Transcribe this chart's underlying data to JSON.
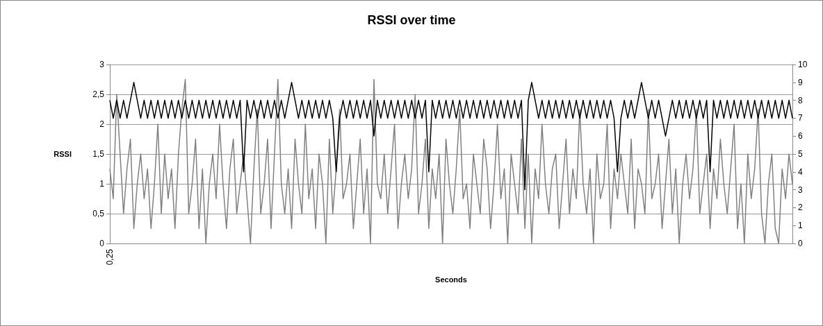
{
  "chart_data": {
    "type": "line",
    "title": "RSSI over time",
    "xlabel": "Seconds",
    "ylabel": "RSSI",
    "categories": [
      "0,25",
      null,
      null,
      null,
      null,
      null,
      null,
      null,
      null,
      null,
      null,
      null,
      null,
      null,
      null,
      null,
      null,
      null,
      null,
      null,
      null,
      null,
      null,
      null,
      null,
      null,
      null,
      null,
      null,
      null,
      null,
      null,
      null,
      null,
      null,
      null,
      null,
      null,
      null,
      null,
      null,
      null,
      null,
      null,
      null,
      null,
      null,
      null,
      null,
      null,
      null,
      null,
      null,
      null,
      null,
      null,
      null,
      null,
      null,
      null,
      null,
      null,
      null,
      null,
      null,
      null,
      null,
      null,
      null,
      null,
      null,
      null,
      null,
      null,
      null,
      null,
      null,
      null,
      null,
      null,
      null,
      null,
      null,
      null,
      null,
      null,
      null,
      null,
      null,
      null,
      null,
      null,
      null,
      null,
      null,
      null,
      null,
      null,
      null,
      null,
      null,
      null,
      null,
      null,
      null,
      null,
      null,
      null,
      null,
      null,
      null,
      null,
      null,
      null,
      null,
      null,
      null,
      null,
      null,
      null,
      null,
      null,
      null,
      null,
      null,
      null,
      null,
      null,
      null,
      null,
      null,
      null,
      null,
      null,
      null,
      null,
      null,
      null,
      null,
      null,
      null,
      null,
      null,
      null,
      null,
      null,
      null,
      null,
      null,
      null,
      null,
      null,
      null,
      null,
      null,
      null,
      null,
      null,
      null,
      null,
      null,
      null,
      null,
      null,
      null,
      null,
      null,
      null,
      null,
      null,
      null,
      null,
      null,
      null,
      null,
      null,
      null,
      null,
      null,
      null,
      null,
      null,
      null,
      null,
      null,
      null,
      null,
      null,
      null,
      null,
      null,
      null,
      null,
      null,
      null,
      null,
      null,
      null,
      null,
      null
    ],
    "series": [
      {
        "color": "#808080",
        "values": [
          1.25,
          0.75,
          2.5,
          1.5,
          0.5,
          1.25,
          1.75,
          0.25,
          1,
          1.5,
          0.75,
          1.25,
          0.25,
          1,
          2,
          0.5,
          1.5,
          0.75,
          1.25,
          0.25,
          1.5,
          2.25,
          2.75,
          0.5,
          1,
          1.75,
          0.25,
          1.25,
          0,
          1,
          1.5,
          0.75,
          2,
          1,
          0.25,
          1.25,
          1.75,
          0.5,
          1,
          1.5,
          0.75,
          0,
          1.25,
          2.25,
          0.5,
          1,
          1.75,
          0.25,
          1.5,
          2.75,
          1,
          0.5,
          1.25,
          0.25,
          1.75,
          1,
          0.5,
          2,
          0.75,
          1.25,
          0.25,
          1.5,
          1,
          0,
          1.75,
          0.5,
          1.25,
          2.25,
          0.75,
          1,
          1.5,
          0.25,
          1,
          1.75,
          0.5,
          1.25,
          0,
          2.75,
          1,
          0.75,
          1.5,
          0.5,
          1.25,
          2,
          0.25,
          1,
          1.5,
          0.75,
          1.25,
          2.5,
          0.5,
          1,
          1.75,
          0.25,
          1.25,
          0.75,
          1.5,
          0,
          1.75,
          1,
          0.5,
          1.25,
          2.25,
          0.75,
          1,
          0.25,
          1.5,
          1,
          0.5,
          1.75,
          1.25,
          0.25,
          1,
          2,
          0.75,
          1.25,
          0,
          1.5,
          1,
          0.5,
          1.75,
          0.25,
          1.5,
          0,
          1.25,
          0.75,
          2,
          1,
          0.5,
          1.25,
          1.5,
          0.25,
          1,
          1.75,
          0.5,
          1.25,
          0.75,
          2.25,
          1,
          0.5,
          1.25,
          0,
          1.5,
          0.75,
          1,
          2,
          0.25,
          1.25,
          0.75,
          1.5,
          1,
          0.5,
          1.75,
          0.25,
          1.25,
          1,
          0.5,
          2.25,
          0.75,
          1,
          1.5,
          0.25,
          1,
          1.75,
          0.5,
          1.25,
          0,
          1,
          1.5,
          0.75,
          1.25,
          2.25,
          0.5,
          1,
          1.5,
          0.25,
          1.25,
          0.75,
          1.75,
          1,
          0.5,
          1.25,
          2,
          0.25,
          1,
          0,
          1.5,
          0.75,
          1.25,
          2.25,
          0.5,
          0,
          1,
          1.5,
          0.25,
          0,
          1.25,
          0.75,
          1.5,
          1
        ]
      },
      {
        "color": "#000000",
        "axis": "y2",
        "values": [
          8,
          7,
          8,
          7,
          8,
          7,
          8,
          9,
          8,
          7,
          8,
          7,
          8,
          7,
          8,
          7,
          8,
          7,
          8,
          7,
          8,
          7,
          8,
          7,
          8,
          7,
          8,
          7,
          8,
          7,
          8,
          7,
          8,
          7,
          8,
          7,
          8,
          7,
          8,
          4,
          8,
          7,
          8,
          7,
          8,
          7,
          8,
          7,
          8,
          7,
          8,
          7,
          8,
          9,
          8,
          7,
          8,
          7,
          8,
          7,
          8,
          7,
          8,
          7,
          8,
          7,
          4,
          7,
          8,
          7,
          8,
          7,
          8,
          7,
          8,
          7,
          8,
          6,
          8,
          7,
          8,
          7,
          8,
          7,
          8,
          7,
          8,
          7,
          8,
          7,
          8,
          7,
          8,
          4,
          8,
          7,
          8,
          7,
          8,
          7,
          8,
          7,
          8,
          7,
          8,
          7,
          8,
          7,
          8,
          7,
          8,
          7,
          8,
          7,
          8,
          7,
          8,
          7,
          8,
          7,
          8,
          3,
          8,
          9,
          8,
          7,
          8,
          7,
          8,
          7,
          8,
          7,
          8,
          7,
          8,
          7,
          8,
          7,
          8,
          7,
          8,
          7,
          8,
          7,
          8,
          7,
          8,
          7,
          4,
          7,
          8,
          7,
          8,
          7,
          8,
          9,
          8,
          7,
          8,
          7,
          8,
          7,
          6,
          7,
          8,
          7,
          8,
          7,
          8,
          7,
          8,
          7,
          8,
          7,
          8,
          4,
          8,
          7,
          8,
          7,
          8,
          7,
          8,
          7,
          8,
          7,
          8,
          7,
          8,
          7,
          8,
          7,
          8,
          7,
          8,
          7,
          8,
          7,
          8,
          7
        ]
      }
    ],
    "ylim": [
      0,
      3
    ],
    "yticks": [
      0,
      {
        "value": 0.5,
        "label": "0,5"
      },
      1,
      {
        "value": 1.5,
        "label": "1,5"
      },
      2,
      {
        "value": 2.5,
        "label": "2,5"
      },
      3
    ],
    "y2lim": [
      0,
      10
    ],
    "y2ticks": [
      0,
      1,
      2,
      3,
      4,
      5,
      6,
      7,
      8,
      9,
      10
    ],
    "grid": "y",
    "marker": "none"
  }
}
